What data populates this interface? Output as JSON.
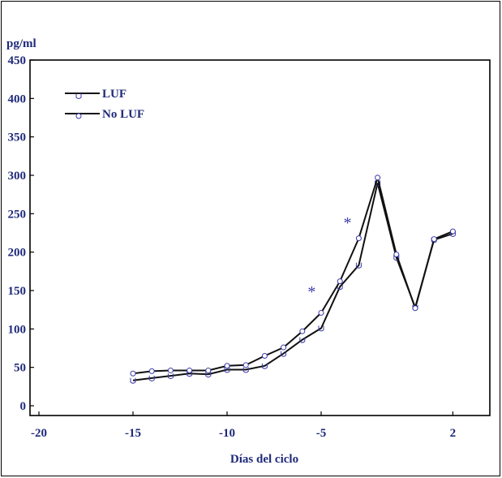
{
  "chart_data": {
    "type": "line",
    "ylabel": "pg/ml",
    "xlabel": "Días del ciclo",
    "ylim": [
      0,
      450
    ],
    "xlim": [
      -20,
      4
    ],
    "yticks": [
      0,
      50,
      100,
      150,
      200,
      250,
      300,
      350,
      400,
      450
    ],
    "xticks": [
      {
        "value": -20,
        "label": "-20"
      },
      {
        "value": -15,
        "label": "-15"
      },
      {
        "value": -10,
        "label": "-10"
      },
      {
        "value": -5,
        "label": "-5"
      },
      {
        "value": 2,
        "label": "2"
      }
    ],
    "legend_position": "top-left",
    "series": [
      {
        "name": "LUF",
        "marker": "u",
        "x": [
          -15,
          -14,
          -13,
          -12,
          -11,
          -10,
          -9,
          -8,
          -7,
          -6,
          -5,
          -4,
          -3,
          -2,
          -1,
          0,
          1,
          2
        ],
        "values": [
          33,
          36,
          39,
          42,
          41,
          47,
          47,
          52,
          68,
          86,
          101,
          155,
          183,
          290,
          193,
          128,
          216,
          224
        ]
      },
      {
        "name": "No LUF",
        "marker": "o",
        "x": [
          -15,
          -14,
          -13,
          -12,
          -11,
          -10,
          -9,
          -8,
          -7,
          -6,
          -5,
          -4,
          -3,
          -2,
          -1,
          0,
          1,
          2
        ],
        "values": [
          42,
          45,
          46,
          46,
          46,
          52,
          53,
          65,
          76,
          97,
          121,
          162,
          218,
          297,
          197,
          127,
          217,
          227
        ]
      }
    ],
    "annotations": [
      {
        "text": "*",
        "x": -5.5,
        "y": 152
      },
      {
        "text": "*",
        "x": -3.6,
        "y": 242
      }
    ],
    "colors": {
      "line": "#111111",
      "marker": "#3a3aa8",
      "text": "#1f2a7a"
    }
  }
}
